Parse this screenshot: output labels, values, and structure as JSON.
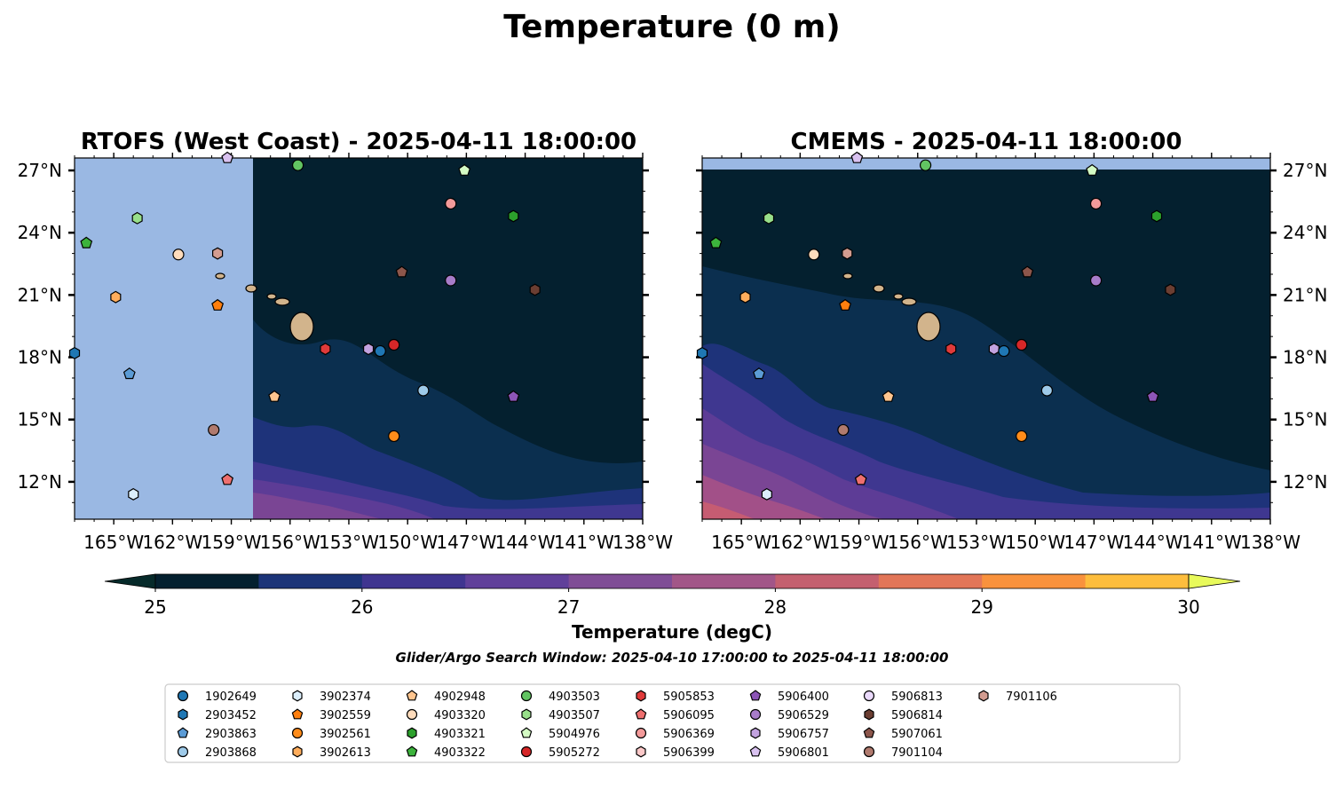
{
  "title": "Temperature (0 m)",
  "colors": {
    "land": "#d2b48c",
    "nodata": "#9ab8e3",
    "bin_25_0": "#04202f",
    "bin_25_5": "#0b2f4f",
    "bin_26_0": "#1e337a",
    "bin_26_5": "#3f3790",
    "bin_27_0": "#5d3c96",
    "bin_27_5": "#7a4594",
    "bin_28_0": "#a25088",
    "bin_28_5": "#c65c72"
  },
  "chart_data": [
    {
      "type": "map",
      "title": "RTOFS (West Coast) - 2025-04-11 18:00:00",
      "x_ticks": [
        "165°W",
        "162°W",
        "159°W",
        "156°W",
        "153°W",
        "150°W",
        "147°W",
        "144°W",
        "141°W",
        "138°W"
      ],
      "y_ticks": [
        "27°N",
        "24°N",
        "21°N",
        "18°N",
        "15°N",
        "12°N"
      ],
      "lon_range": [
        -167,
        -138
      ],
      "lat_range": [
        10.2,
        27.6
      ],
      "data_extent_west_lon": -157.9,
      "markers": [
        {
          "id": "2903452",
          "lon": -167.0,
          "lat": 18.2
        },
        {
          "id": "4903322",
          "lon": -166.4,
          "lat": 23.5
        },
        {
          "id": "4903507",
          "lon": -163.8,
          "lat": 24.7
        },
        {
          "id": "3902613",
          "lon": -164.9,
          "lat": 20.9
        },
        {
          "id": "4903320",
          "lon": -161.7,
          "lat": 22.95
        },
        {
          "id": "7901106",
          "lon": -159.7,
          "lat": 23.0
        },
        {
          "id": "3902559",
          "lon": -159.7,
          "lat": 20.5
        },
        {
          "id": "2903863",
          "lon": -164.2,
          "lat": 17.2
        },
        {
          "id": "7901104",
          "lon": -159.9,
          "lat": 14.5
        },
        {
          "id": "3902374",
          "lon": -164.0,
          "lat": 11.4
        },
        {
          "id": "5906095",
          "lon": -159.2,
          "lat": 12.1
        },
        {
          "id": "5906801",
          "lon": -159.2,
          "lat": 27.6
        },
        {
          "id": "4903503",
          "lon": -155.6,
          "lat": 27.25
        },
        {
          "id": "5904976",
          "lon": -147.1,
          "lat": 27.0
        },
        {
          "id": "5906369",
          "lon": -147.8,
          "lat": 25.4
        },
        {
          "id": "4903321",
          "lon": -144.6,
          "lat": 24.8
        },
        {
          "id": "5907061",
          "lon": -150.3,
          "lat": 22.1
        },
        {
          "id": "5906529",
          "lon": -147.8,
          "lat": 21.7
        },
        {
          "id": "5906814",
          "lon": -143.5,
          "lat": 21.25
        },
        {
          "id": "5905853",
          "lon": -154.2,
          "lat": 18.4
        },
        {
          "id": "5906757",
          "lon": -152.0,
          "lat": 18.4
        },
        {
          "id": "1902649",
          "lon": -151.4,
          "lat": 18.3
        },
        {
          "id": "5905272",
          "lon": -150.7,
          "lat": 18.6
        },
        {
          "id": "2903868",
          "lon": -149.2,
          "lat": 16.4
        },
        {
          "id": "5906400",
          "lon": -144.6,
          "lat": 16.1
        },
        {
          "id": "4902948",
          "lon": -156.8,
          "lat": 16.1
        },
        {
          "id": "3902561",
          "lon": -150.7,
          "lat": 14.2
        }
      ]
    },
    {
      "type": "map",
      "title": "CMEMS - 2025-04-11 18:00:00",
      "x_ticks": [
        "165°W",
        "162°W",
        "159°W",
        "156°W",
        "153°W",
        "150°W",
        "147°W",
        "144°W",
        "141°W",
        "138°W"
      ],
      "y_ticks": [
        "27°N",
        "24°N",
        "21°N",
        "18°N",
        "15°N",
        "12°N"
      ],
      "lon_range": [
        -167,
        -138
      ],
      "lat_range": [
        10.2,
        27.6
      ],
      "data_extent_north_lat": 27.05,
      "markers": [
        {
          "id": "2903452",
          "lon": -167.0,
          "lat": 18.2
        },
        {
          "id": "4903322",
          "lon": -166.3,
          "lat": 23.5
        },
        {
          "id": "4903507",
          "lon": -163.6,
          "lat": 24.7
        },
        {
          "id": "3902613",
          "lon": -164.8,
          "lat": 20.9
        },
        {
          "id": "4903320",
          "lon": -161.3,
          "lat": 22.95
        },
        {
          "id": "7901106",
          "lon": -159.6,
          "lat": 23.0
        },
        {
          "id": "3902559",
          "lon": -159.7,
          "lat": 20.5
        },
        {
          "id": "2903863",
          "lon": -164.1,
          "lat": 17.2
        },
        {
          "id": "7901104",
          "lon": -159.8,
          "lat": 14.5
        },
        {
          "id": "3902374",
          "lon": -163.7,
          "lat": 11.4
        },
        {
          "id": "5906095",
          "lon": -158.9,
          "lat": 12.1
        },
        {
          "id": "5906801",
          "lon": -159.1,
          "lat": 27.6
        },
        {
          "id": "4903503",
          "lon": -155.6,
          "lat": 27.25
        },
        {
          "id": "5904976",
          "lon": -147.1,
          "lat": 27.0
        },
        {
          "id": "5906369",
          "lon": -146.9,
          "lat": 25.4
        },
        {
          "id": "4903321",
          "lon": -143.8,
          "lat": 24.8
        },
        {
          "id": "5907061",
          "lon": -150.4,
          "lat": 22.1
        },
        {
          "id": "5906529",
          "lon": -146.9,
          "lat": 21.7
        },
        {
          "id": "5906814",
          "lon": -143.1,
          "lat": 21.25
        },
        {
          "id": "5905853",
          "lon": -154.3,
          "lat": 18.4
        },
        {
          "id": "5906757",
          "lon": -152.1,
          "lat": 18.4
        },
        {
          "id": "1902649",
          "lon": -151.6,
          "lat": 18.3
        },
        {
          "id": "5905272",
          "lon": -150.7,
          "lat": 18.6
        },
        {
          "id": "2903868",
          "lon": -149.4,
          "lat": 16.4
        },
        {
          "id": "5906400",
          "lon": -144.0,
          "lat": 16.1
        },
        {
          "id": "4902948",
          "lon": -157.5,
          "lat": 16.1
        },
        {
          "id": "3902561",
          "lon": -150.7,
          "lat": 14.2
        }
      ]
    }
  ],
  "colorbar": {
    "label": "Temperature (degC)",
    "ticks": [
      "25",
      "26",
      "27",
      "28",
      "29",
      "30"
    ],
    "min": 25,
    "max": 30,
    "bins": [
      "#04202f",
      "#1c3478",
      "#3f3590",
      "#60409a",
      "#7f4d96",
      "#a25688",
      "#c4606f",
      "#e27658",
      "#f9923d",
      "#fdbd3d"
    ],
    "under_color": "#062a2a",
    "over_color": "#e8fa5b"
  },
  "search_window": "Glider/Argo Search Window: 2025-04-10 17:00:00 to 2025-04-11 18:00:00",
  "legend": [
    {
      "id": "1902649",
      "marker": "circle",
      "color": "#1f77b4"
    },
    {
      "id": "2903452",
      "marker": "hexagon",
      "color": "#1f77b4"
    },
    {
      "id": "2903863",
      "marker": "pentagon",
      "color": "#5b9bd5"
    },
    {
      "id": "2903868",
      "marker": "circle",
      "color": "#9ecae9"
    },
    {
      "id": "3902374",
      "marker": "hexagon",
      "color": "#dbeefb"
    },
    {
      "id": "3902559",
      "marker": "pentagon",
      "color": "#ff7f0e"
    },
    {
      "id": "3902561",
      "marker": "circle",
      "color": "#ff8c1a"
    },
    {
      "id": "3902613",
      "marker": "hexagon",
      "color": "#ffad5c"
    },
    {
      "id": "4902948",
      "marker": "pentagon",
      "color": "#ffc58f"
    },
    {
      "id": "4903320",
      "marker": "circle",
      "color": "#ffdcbc"
    },
    {
      "id": "4903321",
      "marker": "hexagon",
      "color": "#2ca02c"
    },
    {
      "id": "4903322",
      "marker": "pentagon",
      "color": "#3cb33c"
    },
    {
      "id": "4903503",
      "marker": "circle",
      "color": "#62c462"
    },
    {
      "id": "4903507",
      "marker": "hexagon",
      "color": "#98df8a"
    },
    {
      "id": "5904976",
      "marker": "pentagon",
      "color": "#d4fbc4"
    },
    {
      "id": "5905272",
      "marker": "circle",
      "color": "#d62728"
    },
    {
      "id": "5905853",
      "marker": "hexagon",
      "color": "#e03a3a"
    },
    {
      "id": "5906095",
      "marker": "pentagon",
      "color": "#ee6f6f"
    },
    {
      "id": "5906369",
      "marker": "circle",
      "color": "#f39a9a"
    },
    {
      "id": "5906399",
      "marker": "hexagon",
      "color": "#fbc8c8"
    },
    {
      "id": "5906400",
      "marker": "pentagon",
      "color": "#8c55b6"
    },
    {
      "id": "5906529",
      "marker": "circle",
      "color": "#a77cc9"
    },
    {
      "id": "5906757",
      "marker": "hexagon",
      "color": "#c2a2df"
    },
    {
      "id": "5906801",
      "marker": "pentagon",
      "color": "#d9c2f0"
    },
    {
      "id": "5906813",
      "marker": "circle",
      "color": "#ead9fb"
    },
    {
      "id": "5906814",
      "marker": "hexagon",
      "color": "#6b3e32"
    },
    {
      "id": "5907061",
      "marker": "pentagon",
      "color": "#8c564b"
    },
    {
      "id": "7901104",
      "marker": "circle",
      "color": "#b07a6e"
    },
    {
      "id": "7901106",
      "marker": "hexagon",
      "color": "#d39c90"
    }
  ]
}
